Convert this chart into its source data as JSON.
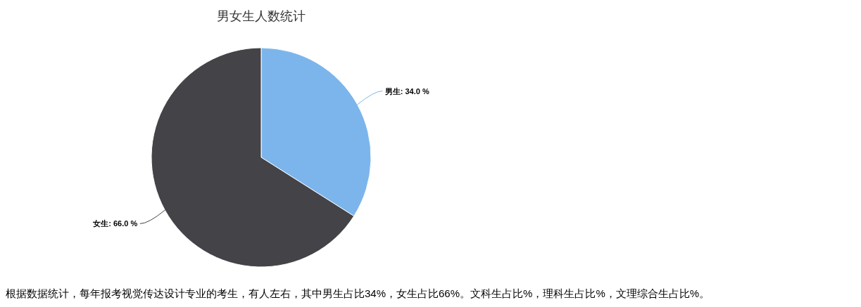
{
  "chart_data": {
    "type": "pie",
    "title": "男女生人数统计",
    "categories": [
      "男生",
      "女生"
    ],
    "values": [
      34,
      66
    ],
    "colors": [
      "#7cb5ec",
      "#434348"
    ],
    "value_labels": [
      "34.0 %",
      "66.0 %"
    ],
    "annotations": [
      "根据数据统计，每年报考视觉传达设计专业的考生，有人左右，其中男生占比34%，女生占比66%。文科生占比%，理科生占比%，文理综合生占比%。"
    ]
  }
}
